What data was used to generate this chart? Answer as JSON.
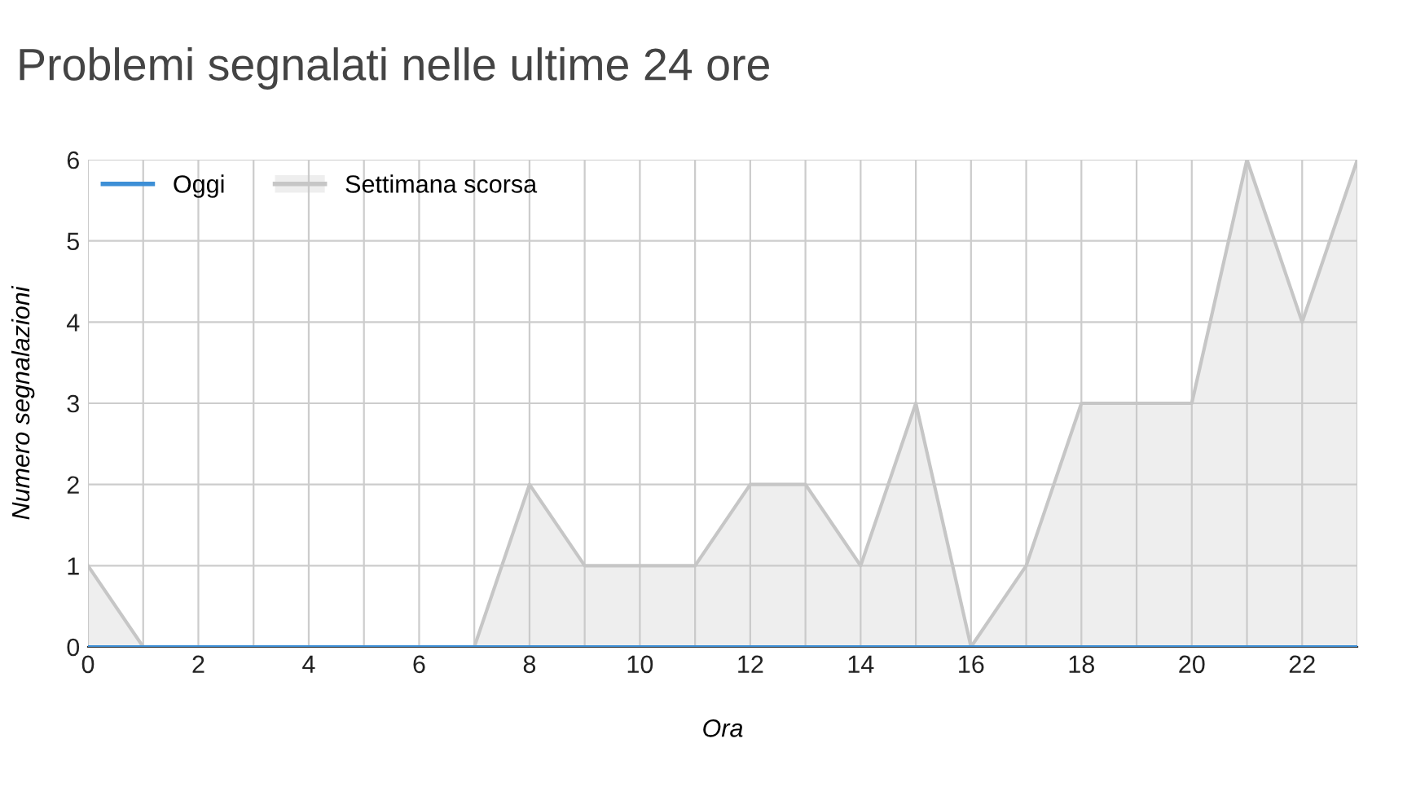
{
  "chart_data": {
    "type": "area",
    "title": "Problemi segnalati nelle ultime 24 ore",
    "xlabel": "Ora",
    "ylabel": "Numero segnalazioni",
    "x": [
      0,
      1,
      2,
      3,
      4,
      5,
      6,
      7,
      8,
      9,
      10,
      11,
      12,
      13,
      14,
      15,
      16,
      17,
      18,
      19,
      20,
      21,
      22,
      23
    ],
    "series": [
      {
        "name": "Oggi",
        "type": "line",
        "color": "#3d8fd6",
        "values": [
          0,
          0,
          0,
          0,
          0,
          0,
          0,
          0,
          0,
          0,
          0,
          0,
          0,
          0,
          0,
          0,
          0,
          0,
          0,
          0,
          0,
          0,
          0,
          0
        ]
      },
      {
        "name": "Settimana scorsa",
        "color": "#c6c6c6",
        "values": [
          1,
          0,
          0,
          0,
          0,
          0,
          0,
          0,
          2,
          1,
          1,
          1,
          2,
          2,
          1,
          3,
          0,
          1,
          3,
          3,
          3,
          6,
          4,
          6
        ]
      }
    ],
    "xlim": [
      0,
      23
    ],
    "xticks": [
      0,
      {
        "value": 1,
        "label": null
      },
      2,
      {
        "value": 3,
        "label": null
      },
      4,
      {
        "value": 5,
        "label": null
      },
      6,
      {
        "value": 7,
        "label": null
      },
      8,
      {
        "value": 9,
        "label": null
      },
      10,
      {
        "value": 11,
        "label": null
      },
      12,
      {
        "value": 13,
        "label": null
      },
      14,
      {
        "value": 15,
        "label": null
      },
      16,
      {
        "value": 17,
        "label": null
      },
      18,
      {
        "value": 19,
        "label": null
      },
      20,
      {
        "value": 21,
        "label": null
      },
      22,
      {
        "value": 23,
        "label": null
      }
    ],
    "ylim": [
      0,
      6
    ],
    "yticks": [
      0,
      1,
      2,
      3,
      4,
      5,
      6
    ],
    "grid": true,
    "legend": "top left"
  }
}
